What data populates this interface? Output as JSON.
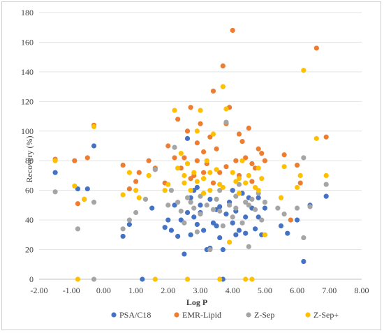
{
  "chart_data": {
    "type": "scatter",
    "title": "",
    "xlabel": "Log P",
    "ylabel": "Recovery (%)",
    "xlim": [
      -2,
      8
    ],
    "ylim": [
      0,
      180
    ],
    "x_ticks": [
      -2,
      -1,
      0,
      1,
      2,
      3,
      4,
      5,
      6,
      7,
      8
    ],
    "x_tick_labels": [
      "-2.00",
      "-1.00",
      "0.00",
      "1.00",
      "2.00",
      "3.00",
      "4.00",
      "5.00",
      "6.00",
      "7.00",
      "8.00"
    ],
    "y_ticks": [
      0,
      20,
      40,
      60,
      80,
      100,
      120,
      140,
      160,
      180
    ],
    "y_tick_labels": [
      "0",
      "20",
      "40",
      "60",
      "80",
      "100",
      "120",
      "140",
      "160",
      "180"
    ],
    "grid": "horizontal",
    "legend_position": "bottom",
    "series": [
      {
        "name": "PSA/C18",
        "color": "#4472C4",
        "points": [
          [
            -1.5,
            72
          ],
          [
            -0.8,
            61
          ],
          [
            -0.5,
            61
          ],
          [
            -0.3,
            90
          ],
          [
            0.6,
            29
          ],
          [
            0.8,
            37
          ],
          [
            1.2,
            0
          ],
          [
            1.5,
            48
          ],
          [
            1.9,
            35
          ],
          [
            2.0,
            40
          ],
          [
            2.1,
            33
          ],
          [
            2.2,
            50
          ],
          [
            2.3,
            29
          ],
          [
            2.4,
            40
          ],
          [
            2.5,
            17
          ],
          [
            2.6,
            45
          ],
          [
            2.7,
            30
          ],
          [
            2.7,
            55
          ],
          [
            2.8,
            42
          ],
          [
            2.9,
            37
          ],
          [
            3.0,
            50
          ],
          [
            3.1,
            33
          ],
          [
            3.2,
            20
          ],
          [
            3.3,
            21
          ],
          [
            3.4,
            38
          ],
          [
            3.5,
            47
          ],
          [
            3.6,
            28
          ],
          [
            3.7,
            20
          ],
          [
            3.8,
            44
          ],
          [
            3.9,
            52
          ],
          [
            4.0,
            38
          ],
          [
            4.1,
            46
          ],
          [
            4.2,
            33
          ],
          [
            4.3,
            58
          ],
          [
            4.4,
            31
          ],
          [
            4.5,
            55
          ],
          [
            4.6,
            48
          ],
          [
            4.7,
            34
          ],
          [
            4.8,
            42
          ],
          [
            4.9,
            30
          ],
          [
            5.0,
            48
          ],
          [
            5.5,
            36
          ],
          [
            5.7,
            31
          ],
          [
            6.0,
            40
          ],
          [
            6.2,
            12
          ],
          [
            6.4,
            50
          ],
          [
            6.9,
            56
          ],
          [
            2.8,
            60
          ],
          [
            3.0,
            45
          ],
          [
            3.3,
            54
          ],
          [
            3.6,
            49
          ],
          [
            4.0,
            60
          ],
          [
            4.4,
            42
          ],
          [
            4.8,
            55
          ],
          [
            2.6,
            95
          ],
          [
            3.7,
            0
          ],
          [
            2.9,
            62
          ],
          [
            3.5,
            36
          ],
          [
            4.1,
            30
          ]
        ]
      },
      {
        "name": "EMR-Lipid",
        "color": "#ED7D31",
        "points": [
          [
            -1.5,
            81
          ],
          [
            -0.9,
            80
          ],
          [
            -0.8,
            51
          ],
          [
            -0.5,
            82
          ],
          [
            -0.3,
            104
          ],
          [
            0.6,
            77
          ],
          [
            0.8,
            61
          ],
          [
            1.0,
            66
          ],
          [
            1.1,
            72
          ],
          [
            1.4,
            80
          ],
          [
            1.6,
            75
          ],
          [
            1.9,
            65
          ],
          [
            2.0,
            90
          ],
          [
            2.2,
            82
          ],
          [
            2.3,
            108
          ],
          [
            2.5,
            82
          ],
          [
            2.6,
            100
          ],
          [
            2.7,
            116
          ],
          [
            2.8,
            70
          ],
          [
            2.9,
            92
          ],
          [
            3.0,
            105
          ],
          [
            3.1,
            86
          ],
          [
            3.2,
            78
          ],
          [
            3.3,
            96
          ],
          [
            3.4,
            127
          ],
          [
            3.5,
            88
          ],
          [
            3.6,
            72
          ],
          [
            3.7,
            144
          ],
          [
            3.8,
            105
          ],
          [
            3.9,
            116
          ],
          [
            4.0,
            168
          ],
          [
            4.1,
            80
          ],
          [
            4.2,
            98
          ],
          [
            4.3,
            93
          ],
          [
            4.4,
            82
          ],
          [
            4.5,
            102
          ],
          [
            4.6,
            78
          ],
          [
            4.7,
            75
          ],
          [
            4.8,
            88
          ],
          [
            4.9,
            85
          ],
          [
            5.0,
            80
          ],
          [
            5.6,
            84
          ],
          [
            5.8,
            40
          ],
          [
            6.0,
            77
          ],
          [
            6.1,
            65
          ],
          [
            6.6,
            156
          ],
          [
            6.9,
            96
          ],
          [
            2.4,
            75
          ],
          [
            2.7,
            68
          ],
          [
            3.1,
            72
          ],
          [
            3.4,
            65
          ],
          [
            3.8,
            76
          ],
          [
            4.2,
            70
          ],
          [
            4.6,
            66
          ],
          [
            2.9,
            80
          ]
        ]
      },
      {
        "name": "Z-Sep",
        "color": "#A5A5A5",
        "points": [
          [
            -1.5,
            59
          ],
          [
            -0.8,
            34
          ],
          [
            -0.6,
            54
          ],
          [
            -0.3,
            52
          ],
          [
            0.6,
            34
          ],
          [
            0.8,
            40
          ],
          [
            1.0,
            45
          ],
          [
            1.3,
            54
          ],
          [
            1.6,
            74
          ],
          [
            2.0,
            50
          ],
          [
            2.1,
            60
          ],
          [
            2.2,
            89
          ],
          [
            2.4,
            46
          ],
          [
            2.5,
            38
          ],
          [
            2.6,
            55
          ],
          [
            2.8,
            48
          ],
          [
            2.9,
            32
          ],
          [
            3.0,
            44
          ],
          [
            3.1,
            58
          ],
          [
            3.3,
            20
          ],
          [
            3.4,
            47
          ],
          [
            3.5,
            54
          ],
          [
            3.6,
            60
          ],
          [
            3.7,
            36
          ],
          [
            3.8,
            106
          ],
          [
            3.9,
            50
          ],
          [
            4.0,
            42
          ],
          [
            4.1,
            56
          ],
          [
            4.2,
            64
          ],
          [
            4.3,
            38
          ],
          [
            4.4,
            52
          ],
          [
            4.5,
            22
          ],
          [
            4.6,
            54
          ],
          [
            4.7,
            47
          ],
          [
            4.8,
            58
          ],
          [
            4.9,
            40
          ],
          [
            5.0,
            52
          ],
          [
            5.4,
            48
          ],
          [
            5.6,
            44
          ],
          [
            6.0,
            48
          ],
          [
            6.2,
            28
          ],
          [
            6.2,
            82
          ],
          [
            6.4,
            49
          ],
          [
            6.9,
            64
          ],
          [
            -0.3,
            0
          ],
          [
            2.7,
            52
          ],
          [
            3.2,
            50
          ],
          [
            3.6,
            46
          ],
          [
            4.1,
            48
          ],
          [
            4.5,
            50
          ],
          [
            2.3,
            52
          ],
          [
            3.0,
            56
          ]
        ]
      },
      {
        "name": "Z-Sep+",
        "color": "#FFC000",
        "points": [
          [
            -1.5,
            80
          ],
          [
            -0.9,
            63
          ],
          [
            -0.8,
            0
          ],
          [
            -0.6,
            54
          ],
          [
            -0.3,
            103
          ],
          [
            0.6,
            57
          ],
          [
            0.8,
            72
          ],
          [
            1.0,
            60
          ],
          [
            1.1,
            55
          ],
          [
            1.4,
            70
          ],
          [
            1.6,
            0
          ],
          [
            1.9,
            60
          ],
          [
            2.0,
            64
          ],
          [
            2.2,
            114
          ],
          [
            2.3,
            75
          ],
          [
            2.4,
            85
          ],
          [
            2.5,
            65
          ],
          [
            2.6,
            78
          ],
          [
            2.7,
            60
          ],
          [
            2.8,
            72
          ],
          [
            2.9,
            100
          ],
          [
            3.0,
            114
          ],
          [
            3.1,
            68
          ],
          [
            3.2,
            80
          ],
          [
            3.3,
            60
          ],
          [
            3.4,
            98
          ],
          [
            3.5,
            74
          ],
          [
            3.6,
            64
          ],
          [
            3.7,
            130
          ],
          [
            3.8,
            115
          ],
          [
            3.9,
            25
          ],
          [
            4.0,
            72
          ],
          [
            4.1,
            66
          ],
          [
            4.2,
            58
          ],
          [
            4.3,
            80
          ],
          [
            4.4,
            65
          ],
          [
            4.5,
            70
          ],
          [
            4.6,
            0
          ],
          [
            4.7,
            62
          ],
          [
            4.8,
            75
          ],
          [
            4.9,
            68
          ],
          [
            5.0,
            30
          ],
          [
            5.5,
            55
          ],
          [
            5.6,
            76
          ],
          [
            6.0,
            62
          ],
          [
            6.1,
            70
          ],
          [
            6.2,
            141
          ],
          [
            6.6,
            95
          ],
          [
            6.9,
            70
          ],
          [
            2.6,
            0
          ],
          [
            3.6,
            0
          ],
          [
            4.4,
            0
          ],
          [
            2.5,
            70
          ],
          [
            2.9,
            66
          ],
          [
            3.3,
            72
          ],
          [
            3.7,
            62
          ],
          [
            4.2,
            68
          ],
          [
            4.8,
            60
          ],
          [
            3.1,
            58
          ]
        ]
      }
    ]
  }
}
